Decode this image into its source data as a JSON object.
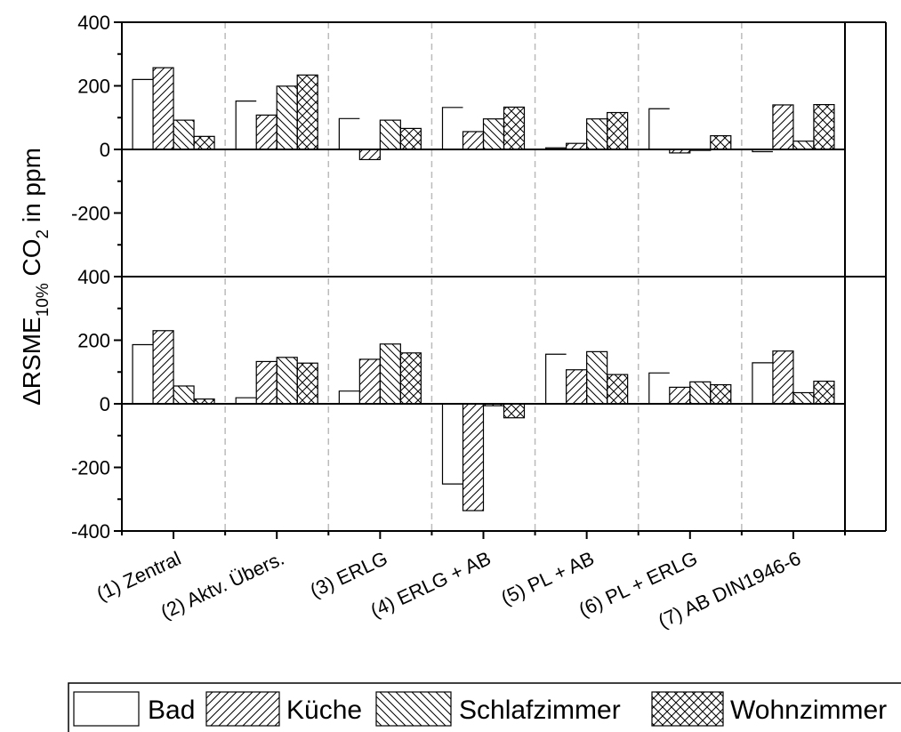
{
  "chart_data": [
    {
      "type": "bar",
      "panel": "top",
      "categories": [
        "(1) Zentral",
        "(2) Aktv. Übers.",
        "(3) ERLG",
        "(4) ERLG + AB",
        "(5) PL + AB",
        "(6) PL + ERLG",
        "(7) AB DIN1946-6"
      ],
      "series": [
        {
          "name": "Bad",
          "values": [
            220,
            152,
            97,
            132,
            5,
            128,
            -7
          ]
        },
        {
          "name": "Küche",
          "values": [
            257,
            108,
            -32,
            56,
            19,
            -11,
            140
          ]
        },
        {
          "name": "Schlafzimmer",
          "values": [
            92,
            199,
            92,
            96,
            96,
            -3,
            26
          ]
        },
        {
          "name": "Wohnzimmer",
          "values": [
            41,
            234,
            66,
            133,
            116,
            43,
            141
          ]
        }
      ],
      "ylim": [
        -400,
        400
      ],
      "yticks": [
        -400,
        -200,
        0,
        200,
        400
      ],
      "grid": "vertical dashed separators between categories"
    },
    {
      "type": "bar",
      "panel": "bottom",
      "categories": [
        "(1) Zentral",
        "(2) Aktv. Übers.",
        "(3) ERLG",
        "(4) ERLG + AB",
        "(5) PL + AB",
        "(6) PL + ERLG",
        "(7) AB DIN1946-6"
      ],
      "series": [
        {
          "name": "Bad",
          "values": [
            186,
            19,
            40,
            -252,
            156,
            97,
            129
          ]
        },
        {
          "name": "Küche",
          "values": [
            230,
            133,
            140,
            -336,
            107,
            52,
            166
          ]
        },
        {
          "name": "Schlafzimmer",
          "values": [
            56,
            146,
            188,
            -6,
            164,
            69,
            35
          ]
        },
        {
          "name": "Wohnzimmer",
          "values": [
            15,
            128,
            160,
            -44,
            92,
            60,
            71
          ]
        }
      ],
      "ylim": [
        -400,
        400
      ],
      "yticks": [
        -400,
        -200,
        0,
        200,
        400
      ],
      "grid": "vertical dashed separators between categories"
    }
  ],
  "axis": {
    "ylabel_main": "ΔRSME",
    "ylabel_sub": "10%",
    "ylabel_mid": " CO",
    "ylabel_sub2": "2",
    "ylabel_end": " in ppm"
  },
  "legend": {
    "placement": "bottom",
    "items": [
      {
        "label": "Bad",
        "pattern": "none"
      },
      {
        "label": "Küche",
        "pattern": "diag-up"
      },
      {
        "label": "Schlafzimmer",
        "pattern": "diag-down"
      },
      {
        "label": "Wohnzimmer",
        "pattern": "cross"
      }
    ]
  },
  "colors": {
    "bar_fill": "#ffffff",
    "stroke": "#000000",
    "separator": "#bbbbbb"
  }
}
